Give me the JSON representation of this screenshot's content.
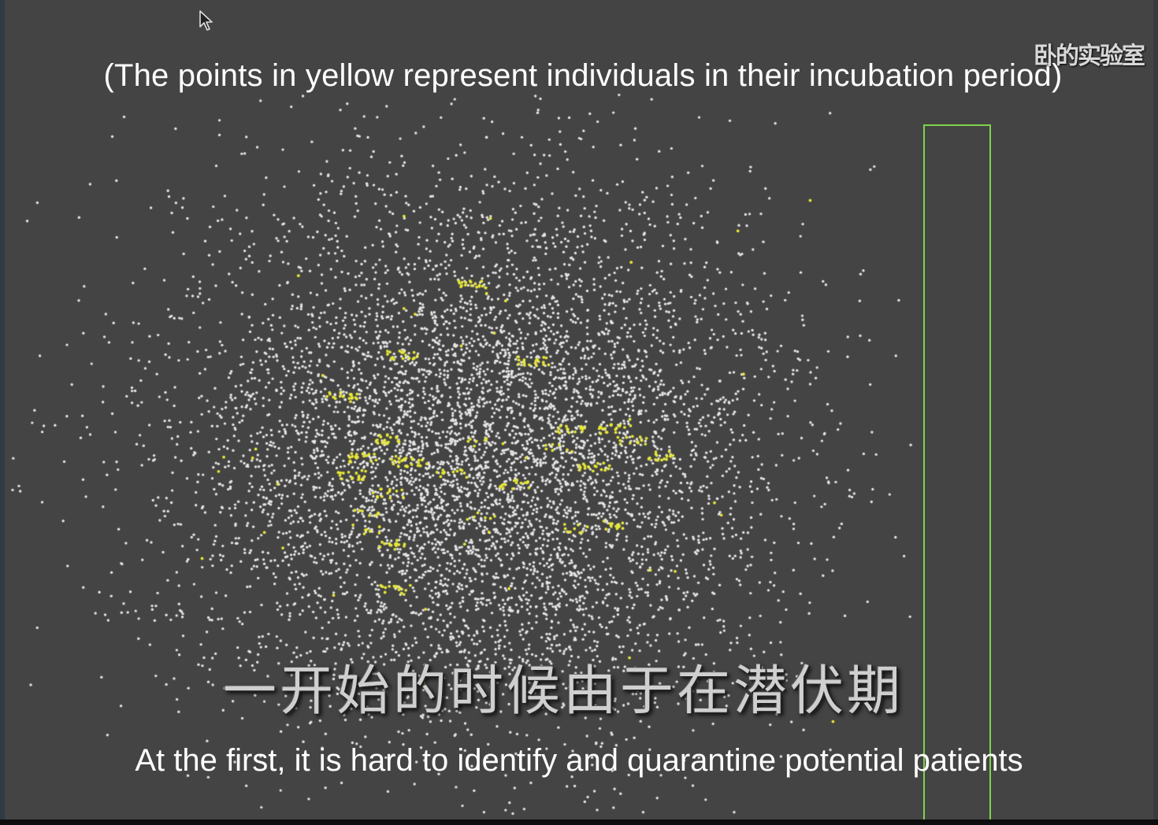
{
  "captions": {
    "top": "(The points in yellow represent individuals in their incubation period)",
    "subtitle_cn": "一开始的时候由于在潜伏期",
    "bottom": "At the first, it is hard to identify and quarantine potential patients"
  },
  "watermark": {
    "text": "卧的实验室"
  },
  "simulation": {
    "background_color": "#444444",
    "healthy_color": "#e6e6e6",
    "incubating_color": "#e8e83a",
    "quarantine_border_color": "#7fd34a"
  },
  "icons": {
    "cursor": "mouse-pointer-icon"
  }
}
